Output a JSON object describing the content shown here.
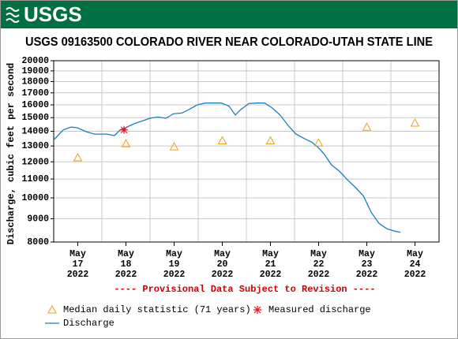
{
  "header": {
    "logo": "USGS"
  },
  "chart_data": {
    "type": "line",
    "title": "USGS 09163500 COLORADO RIVER NEAR COLORADO-UTAH STATE LINE",
    "ylabel": "Discharge, cubic feet per second",
    "note": "---- Provisional Data Subject to Revision ----",
    "ylog": true,
    "grid": true,
    "ylim": [
      8000,
      20000
    ],
    "yticks": [
      8000,
      9000,
      10000,
      11000,
      12000,
      13000,
      14000,
      15000,
      16000,
      17000,
      18000,
      19000,
      20000
    ],
    "xlim": [
      17,
      25
    ],
    "xgrid": [
      18,
      19,
      20,
      21,
      22,
      23,
      24
    ],
    "xticks": [
      {
        "value": 17.5,
        "label": [
          "May",
          "17",
          "2022"
        ]
      },
      {
        "value": 18.5,
        "label": [
          "May",
          "18",
          "2022"
        ]
      },
      {
        "value": 19.5,
        "label": [
          "May",
          "19",
          "2022"
        ]
      },
      {
        "value": 20.5,
        "label": [
          "May",
          "20",
          "2022"
        ]
      },
      {
        "value": 21.5,
        "label": [
          "May",
          "21",
          "2022"
        ]
      },
      {
        "value": 22.5,
        "label": [
          "May",
          "22",
          "2022"
        ]
      },
      {
        "value": 23.5,
        "label": [
          "May",
          "23",
          "2022"
        ]
      },
      {
        "value": 24.5,
        "label": [
          "May",
          "24",
          "2022"
        ]
      }
    ],
    "series": [
      {
        "name": "Median daily statistic (71 years)",
        "marker": "triangle",
        "color": "#e8a317",
        "x": [
          17.5,
          18.5,
          19.5,
          20.5,
          21.5,
          22.5,
          23.5,
          24.5
        ],
        "values": [
          12250,
          13150,
          12950,
          13350,
          13350,
          13200,
          14300,
          14600
        ]
      },
      {
        "name": "Measured discharge",
        "marker": "asterisk",
        "color": "#e0141e",
        "x": [
          18.46
        ],
        "values": [
          14100
        ]
      },
      {
        "name": "Discharge",
        "marker": "line",
        "color": "#1a7fb8",
        "x": [
          17.0,
          17.2,
          17.36,
          17.49,
          17.69,
          17.85,
          18.1,
          18.26,
          18.38,
          18.49,
          18.67,
          18.84,
          19.0,
          19.16,
          19.33,
          19.49,
          19.66,
          19.82,
          19.98,
          20.15,
          20.31,
          20.48,
          20.64,
          20.77,
          20.89,
          21.05,
          21.21,
          21.38,
          21.54,
          21.7,
          21.87,
          22.03,
          22.2,
          22.36,
          22.49,
          22.61,
          22.77,
          22.93,
          23.1,
          23.26,
          23.43,
          23.59,
          23.75,
          23.92,
          24.08,
          24.2
        ],
        "values": [
          13400,
          14100,
          14300,
          14250,
          13950,
          13800,
          13800,
          13700,
          14100,
          14250,
          14550,
          14750,
          14950,
          15050,
          14950,
          15300,
          15350,
          15650,
          16000,
          16150,
          16150,
          16150,
          15900,
          15200,
          15650,
          16100,
          16150,
          16150,
          15750,
          15200,
          14400,
          13800,
          13500,
          13250,
          12900,
          12500,
          11800,
          11450,
          10950,
          10550,
          10100,
          9300,
          8800,
          8550,
          8450,
          8400
        ]
      }
    ]
  }
}
